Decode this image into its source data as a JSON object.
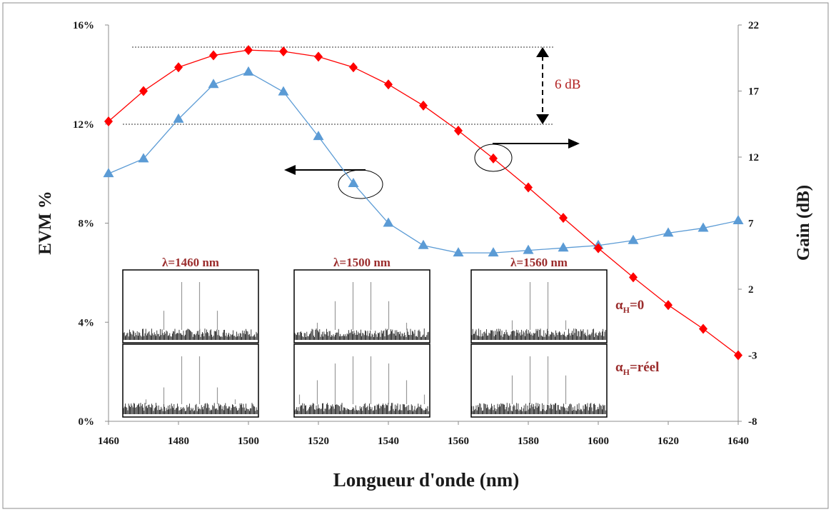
{
  "chart_data": {
    "type": "line",
    "xlabel": "Longueur d'onde (nm)",
    "ylabel_left": "EVM %",
    "ylabel_right": "Gain (dB)",
    "x": [
      1460,
      1470,
      1480,
      1490,
      1500,
      1510,
      1520,
      1530,
      1540,
      1550,
      1560,
      1570,
      1580,
      1590,
      1600,
      1610,
      1620,
      1630,
      1640
    ],
    "xlim": [
      1460,
      1640
    ],
    "x_ticks": [
      "1460",
      "1480",
      "1500",
      "1520",
      "1540",
      "1560",
      "1580",
      "1600",
      "1620",
      "1640"
    ],
    "ylim_left": [
      0,
      16
    ],
    "y_ticks_left": [
      "0%",
      "4%",
      "8%",
      "12%",
      "16%"
    ],
    "ylim_right": [
      -8,
      22
    ],
    "y_ticks_right": [
      "-8",
      "-3",
      "2",
      "7",
      "12",
      "17",
      "22"
    ],
    "series": [
      {
        "axis": "left",
        "marker": "triangle",
        "color": "#5b9bd5",
        "values": [
          10.0,
          10.6,
          12.2,
          13.6,
          14.1,
          13.3,
          11.5,
          9.6,
          8.0,
          7.1,
          6.8,
          6.8,
          6.9,
          7.0,
          7.1,
          7.3,
          7.6,
          7.8,
          8.1
        ]
      },
      {
        "axis": "right",
        "marker": "diamond",
        "color": "#ff0000",
        "values": [
          14.7,
          17.0,
          18.8,
          19.7,
          20.1,
          20.0,
          19.6,
          18.8,
          17.5,
          15.9,
          14.0,
          11.9,
          9.7,
          7.4,
          5.1,
          2.9,
          0.8,
          -1.0,
          -3.0
        ]
      }
    ],
    "annotations": {
      "gain_range": "6 dB",
      "alpha_zero": "=0",
      "alpha_real": "=réel",
      "alpha_symbol": "α",
      "alpha_sub": "H"
    },
    "insets": [
      {
        "title": "λ=1460 nm",
        "peaks_top": [
          0.4,
          1.0,
          1.0,
          0.4
        ],
        "peaks_bottom": [
          0.1,
          0.35,
          1.0,
          1.0,
          0.35,
          0.1
        ]
      },
      {
        "title": "λ=1500 nm",
        "peaks_top": [
          0.15,
          0.6,
          1.0,
          1.0,
          0.6,
          0.15
        ],
        "peaks_bottom": [
          0.2,
          0.5,
          0.85,
          1.0,
          1.0,
          0.85,
          0.5,
          0.2
        ]
      },
      {
        "title": "λ=1560 nm",
        "peaks_top": [
          0.2,
          1.0,
          1.0,
          0.2
        ],
        "peaks_bottom": [
          0.6,
          1.0,
          1.0,
          0.6
        ]
      }
    ]
  },
  "colors": {
    "evm_series": "#5b9bd5",
    "gain_series": "#ff0000",
    "annotation": "#b22222",
    "inset_title": "#9b2d2d"
  }
}
